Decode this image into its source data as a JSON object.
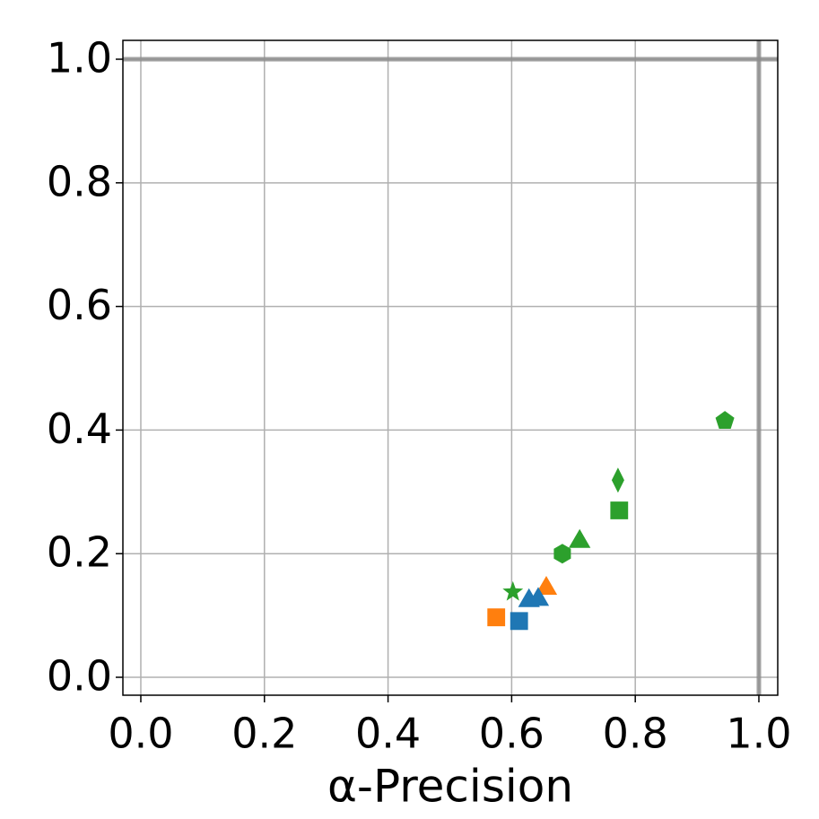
{
  "chart_data": {
    "type": "scatter",
    "x_label": "α-Precision",
    "xlim": [
      -0.029,
      1.0305
    ],
    "ylim": [
      -0.029,
      1.0305
    ],
    "xticks": [
      {
        "value": 0,
        "label": "0.0"
      },
      {
        "value": 0.2,
        "label": "0.2"
      },
      {
        "value": 0.4,
        "label": "0.4"
      },
      {
        "value": 0.6,
        "label": "0.6"
      },
      {
        "value": 0.8,
        "label": "0.8"
      },
      {
        "value": 1,
        "label": "1.0"
      }
    ],
    "yticks": [
      {
        "value": 0,
        "label": "0.0"
      },
      {
        "value": 0.2,
        "label": "0.2"
      },
      {
        "value": 0.4,
        "label": "0.4"
      },
      {
        "value": 0.6,
        "label": "0.6"
      },
      {
        "value": 0.8,
        "label": "0.8"
      },
      {
        "value": 1,
        "label": "1.0"
      }
    ],
    "grid": true,
    "hline": 1,
    "vline": 1,
    "series": [
      {
        "color": "#ff7f0e",
        "marker": "square",
        "x": [
          0.575
        ],
        "values": [
          0.097
        ]
      },
      {
        "color": "#ff7f0e",
        "marker": "triangle",
        "x": [
          0.656
        ],
        "values": [
          0.148
        ]
      },
      {
        "color": "#1f77b4",
        "marker": "square",
        "x": [
          0.612
        ],
        "values": [
          0.091
        ]
      },
      {
        "color": "#1f77b4",
        "marker": "triangle",
        "x": [
          0.628,
          0.643
        ],
        "values": [
          0.128,
          0.13
        ]
      },
      {
        "color": "#2ca02c",
        "marker": "star",
        "x": [
          0.602
        ],
        "values": [
          0.138
        ]
      },
      {
        "color": "#2ca02c",
        "marker": "hexagon",
        "x": [
          0.682
        ],
        "values": [
          0.2
        ]
      },
      {
        "color": "#2ca02c",
        "marker": "triangle",
        "x": [
          0.71
        ],
        "values": [
          0.224
        ]
      },
      {
        "color": "#2ca02c",
        "marker": "square",
        "x": [
          0.774
        ],
        "values": [
          0.27
        ]
      },
      {
        "color": "#2ca02c",
        "marker": "diamond",
        "x": [
          0.772
        ],
        "values": [
          0.319
        ]
      },
      {
        "color": "#2ca02c",
        "marker": "pentagon",
        "x": [
          0.945
        ],
        "values": [
          0.415
        ]
      }
    ]
  }
}
